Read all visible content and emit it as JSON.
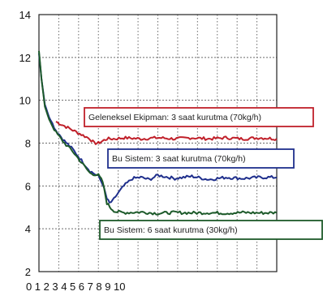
{
  "chart_data": {
    "type": "line",
    "title": "",
    "xlabel": "",
    "ylabel": "",
    "ylim": [
      2,
      14
    ],
    "xlim": [
      0,
      28
    ],
    "y_ticks": [
      "2",
      "4",
      "6",
      "8",
      "10",
      "12",
      "14"
    ],
    "x_tick_labels": [
      "0",
      "1",
      "2",
      "3",
      "4",
      "5",
      "6",
      "7",
      "8",
      "9",
      "10"
    ],
    "grid": true,
    "series": [
      {
        "name": "Geleneksel Ekipman: 3 saat kurutma (70kg/h)",
        "color": "#c0202a",
        "x": [
          2,
          3,
          4,
          5,
          6,
          6.5,
          7,
          7.5,
          8,
          9,
          10,
          12,
          14,
          16,
          18,
          20,
          22,
          24,
          26,
          28
        ],
        "y": [
          9.0,
          8.8,
          8.6,
          8.4,
          8.2,
          8.0,
          8.0,
          8.1,
          8.2,
          8.2,
          8.25,
          8.2,
          8.25,
          8.2,
          8.25,
          8.2,
          8.25,
          8.2,
          8.25,
          8.2
        ]
      },
      {
        "name": "Bu Sistem: 3 saat kurutma (70kg/h)",
        "color": "#1f2f8c",
        "x": [
          0,
          0.3,
          0.7,
          1.2,
          2,
          3,
          4,
          5,
          6,
          7,
          7.5,
          8,
          8.3,
          8.7,
          9,
          10,
          11,
          12,
          13,
          14,
          16,
          18,
          20,
          22,
          24,
          26,
          28
        ],
        "y": [
          12.2,
          11.0,
          9.8,
          9.2,
          8.6,
          8.1,
          7.7,
          7.2,
          6.7,
          6.45,
          6.1,
          5.4,
          5.2,
          5.3,
          5.5,
          6.0,
          6.35,
          6.4,
          6.3,
          6.5,
          6.35,
          6.45,
          6.3,
          6.4,
          6.35,
          6.4,
          6.4
        ]
      },
      {
        "name": "Bu Sistem: 6 saat kurutma (30kg/h)",
        "color": "#1d5a2a",
        "x": [
          0,
          0.3,
          0.7,
          1.2,
          2,
          3,
          4,
          5,
          6,
          7,
          7.5,
          8,
          8.5,
          9,
          10,
          12,
          14,
          16,
          18,
          20,
          22,
          24,
          26,
          28
        ],
        "y": [
          12.3,
          11.0,
          9.7,
          9.1,
          8.5,
          8.0,
          7.6,
          7.1,
          6.6,
          6.5,
          6.2,
          5.2,
          4.95,
          4.8,
          4.75,
          4.78,
          4.72,
          4.76,
          4.74,
          4.75,
          4.73,
          4.76,
          4.74,
          4.75
        ]
      }
    ],
    "annotations": [
      {
        "text": "Geleneksel Ekipman: 3 saat kurutma (70kg/h)",
        "color": "#c0202a"
      },
      {
        "text": "Bu Sistem: 3 saat kurutma (70kg/h)",
        "color": "#1f2f8c"
      },
      {
        "text": "Bu Sistem: 6 saat kurutma (30kg/h)",
        "color": "#1d5a2a"
      }
    ]
  }
}
